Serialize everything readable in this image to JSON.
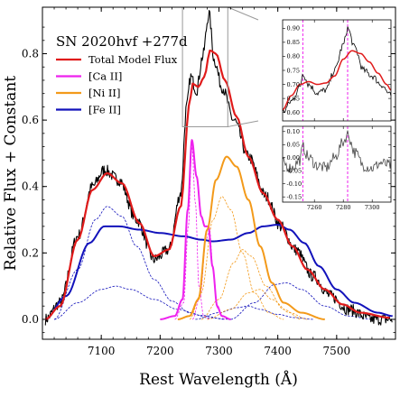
{
  "chart_data": {
    "type": "line",
    "title": "SN 2020hvf +277d",
    "xlabel": "Rest Wavelength (Å)",
    "ylabel": "Relative Flux + Constant",
    "xlim": [
      7000,
      7600
    ],
    "ylim": [
      -0.06,
      0.94
    ],
    "x_ticks": [
      "7100",
      "7200",
      "7300",
      "7400",
      "7500"
    ],
    "y_ticks": [
      "0.0",
      "0.2",
      "0.4",
      "0.6",
      "0.8"
    ],
    "legend_position": "upper-left",
    "legend": [
      {
        "label": "Total Model Flux",
        "color": "#e01b1b"
      },
      {
        "label": "[Ca II]",
        "color": "#ee22ee"
      },
      {
        "label": "[Ni II]",
        "color": "#f39a1a"
      },
      {
        "label": "[Fe II]",
        "color": "#1212bb"
      }
    ],
    "series": [
      {
        "name": "Total Model Flux",
        "color": "#e01b1b",
        "width": 2.2,
        "points": [
          [
            7005,
            0.0
          ],
          [
            7030,
            0.04
          ],
          [
            7060,
            0.24
          ],
          [
            7085,
            0.39
          ],
          [
            7110,
            0.44
          ],
          [
            7135,
            0.41
          ],
          [
            7165,
            0.29
          ],
          [
            7190,
            0.19
          ],
          [
            7215,
            0.21
          ],
          [
            7235,
            0.34
          ],
          [
            7250,
            0.65
          ],
          [
            7255,
            0.71
          ],
          [
            7265,
            0.7
          ],
          [
            7275,
            0.73
          ],
          [
            7285,
            0.81
          ],
          [
            7295,
            0.8
          ],
          [
            7310,
            0.72
          ],
          [
            7330,
            0.61
          ],
          [
            7350,
            0.49
          ],
          [
            7375,
            0.38
          ],
          [
            7400,
            0.3
          ],
          [
            7425,
            0.22
          ],
          [
            7450,
            0.15
          ],
          [
            7480,
            0.09
          ],
          [
            7510,
            0.045
          ],
          [
            7540,
            0.02
          ],
          [
            7590,
            0.005
          ]
        ]
      },
      {
        "name": "[Ca II]",
        "color": "#ee22ee",
        "width": 2.0,
        "points": [
          [
            7200,
            0.0
          ],
          [
            7225,
            0.01
          ],
          [
            7238,
            0.06
          ],
          [
            7247,
            0.33
          ],
          [
            7254,
            0.54
          ],
          [
            7262,
            0.43
          ],
          [
            7270,
            0.31
          ],
          [
            7276,
            0.28
          ],
          [
            7282,
            0.28
          ],
          [
            7289,
            0.16
          ],
          [
            7297,
            0.04
          ],
          [
            7305,
            0.01
          ],
          [
            7320,
            0.0
          ]
        ]
      },
      {
        "name": "[Ni II]",
        "color": "#f39a1a",
        "width": 2.0,
        "points": [
          [
            7230,
            0.0
          ],
          [
            7250,
            0.01
          ],
          [
            7265,
            0.06
          ],
          [
            7280,
            0.27
          ],
          [
            7295,
            0.42
          ],
          [
            7313,
            0.49
          ],
          [
            7330,
            0.46
          ],
          [
            7350,
            0.36
          ],
          [
            7370,
            0.22
          ],
          [
            7390,
            0.11
          ],
          [
            7410,
            0.05
          ],
          [
            7440,
            0.02
          ],
          [
            7480,
            0.0
          ]
        ]
      },
      {
        "name": "[Fe II]",
        "color": "#1212bb",
        "width": 2.0,
        "points": [
          [
            7005,
            0.0
          ],
          [
            7040,
            0.07
          ],
          [
            7080,
            0.23
          ],
          [
            7105,
            0.28
          ],
          [
            7130,
            0.28
          ],
          [
            7165,
            0.27
          ],
          [
            7200,
            0.26
          ],
          [
            7240,
            0.25
          ],
          [
            7270,
            0.24
          ],
          [
            7290,
            0.235
          ],
          [
            7320,
            0.24
          ],
          [
            7350,
            0.26
          ],
          [
            7375,
            0.28
          ],
          [
            7400,
            0.285
          ],
          [
            7420,
            0.27
          ],
          [
            7445,
            0.23
          ],
          [
            7470,
            0.16
          ],
          [
            7500,
            0.09
          ],
          [
            7530,
            0.05
          ],
          [
            7570,
            0.02
          ],
          [
            7595,
            0.01
          ]
        ]
      }
    ],
    "component_series": [
      {
        "color": "#1212bb",
        "points": [
          [
            7020,
            0.0
          ],
          [
            7060,
            0.15
          ],
          [
            7090,
            0.3
          ],
          [
            7110,
            0.34
          ],
          [
            7135,
            0.31
          ],
          [
            7160,
            0.22
          ],
          [
            7190,
            0.12
          ],
          [
            7220,
            0.055
          ],
          [
            7250,
            0.02
          ],
          [
            7280,
            0.005
          ],
          [
            7320,
            0.0
          ]
        ]
      },
      {
        "color": "#1212bb",
        "points": [
          [
            7020,
            0.0
          ],
          [
            7060,
            0.05
          ],
          [
            7100,
            0.09
          ],
          [
            7125,
            0.1
          ],
          [
            7150,
            0.09
          ],
          [
            7190,
            0.06
          ],
          [
            7230,
            0.03
          ],
          [
            7270,
            0.012
          ],
          [
            7310,
            0.0
          ]
        ]
      },
      {
        "color": "#1212bb",
        "points": [
          [
            7260,
            0.0
          ],
          [
            7300,
            0.02
          ],
          [
            7330,
            0.035
          ],
          [
            7350,
            0.04
          ],
          [
            7370,
            0.03
          ],
          [
            7400,
            0.015
          ],
          [
            7430,
            0.005
          ],
          [
            7460,
            0.0
          ]
        ]
      },
      {
        "color": "#1212bb",
        "points": [
          [
            7320,
            0.0
          ],
          [
            7360,
            0.05
          ],
          [
            7395,
            0.105
          ],
          [
            7415,
            0.11
          ],
          [
            7440,
            0.09
          ],
          [
            7480,
            0.04
          ],
          [
            7520,
            0.01
          ],
          [
            7560,
            0.0
          ]
        ]
      },
      {
        "color": "#ee22ee",
        "points": [
          [
            7225,
            0.0
          ],
          [
            7240,
            0.05
          ],
          [
            7248,
            0.28
          ],
          [
            7254,
            0.52
          ],
          [
            7260,
            0.35
          ],
          [
            7266,
            0.1
          ],
          [
            7274,
            0.01
          ],
          [
            7285,
            0.0
          ]
        ]
      },
      {
        "color": "#ee22ee",
        "points": [
          [
            7255,
            0.0
          ],
          [
            7268,
            0.07
          ],
          [
            7278,
            0.24
          ],
          [
            7284,
            0.27
          ],
          [
            7290,
            0.15
          ],
          [
            7298,
            0.03
          ],
          [
            7310,
            0.0
          ]
        ]
      },
      {
        "color": "#f39a1a",
        "points": [
          [
            7250,
            0.0
          ],
          [
            7270,
            0.08
          ],
          [
            7290,
            0.3
          ],
          [
            7305,
            0.37
          ],
          [
            7320,
            0.33
          ],
          [
            7340,
            0.2
          ],
          [
            7360,
            0.08
          ],
          [
            7385,
            0.02
          ],
          [
            7410,
            0.0
          ]
        ]
      },
      {
        "color": "#f39a1a",
        "points": [
          [
            7270,
            0.0
          ],
          [
            7300,
            0.06
          ],
          [
            7325,
            0.17
          ],
          [
            7340,
            0.21
          ],
          [
            7355,
            0.19
          ],
          [
            7380,
            0.1
          ],
          [
            7410,
            0.03
          ],
          [
            7440,
            0.0
          ]
        ]
      },
      {
        "color": "#f39a1a",
        "points": [
          [
            7280,
            0.0
          ],
          [
            7320,
            0.03
          ],
          [
            7350,
            0.08
          ],
          [
            7370,
            0.09
          ],
          [
            7390,
            0.06
          ],
          [
            7420,
            0.02
          ],
          [
            7450,
            0.0
          ]
        ]
      }
    ],
    "observed_spectrum": {
      "name": "Observed spectrum",
      "color": "#000000",
      "points": [
        [
          7005,
          0.0
        ],
        [
          7030,
          0.05
        ],
        [
          7060,
          0.25
        ],
        [
          7085,
          0.4
        ],
        [
          7105,
          0.45
        ],
        [
          7130,
          0.42
        ],
        [
          7160,
          0.3
        ],
        [
          7190,
          0.18
        ],
        [
          7215,
          0.21
        ],
        [
          7235,
          0.38
        ],
        [
          7245,
          0.64
        ],
        [
          7252,
          0.73
        ],
        [
          7262,
          0.69
        ],
        [
          7272,
          0.79
        ],
        [
          7283,
          0.92
        ],
        [
          7292,
          0.78
        ],
        [
          7305,
          0.7
        ],
        [
          7325,
          0.6
        ],
        [
          7350,
          0.49
        ],
        [
          7380,
          0.37
        ],
        [
          7405,
          0.28
        ],
        [
          7430,
          0.21
        ],
        [
          7460,
          0.13
        ],
        [
          7490,
          0.07
        ],
        [
          7520,
          0.03
        ],
        [
          7560,
          0.0
        ],
        [
          7595,
          0.0
        ]
      ],
      "noise_amplitude": 0.018
    },
    "zoom_box": {
      "x": [
        7238,
        7315
      ],
      "y": [
        0.58,
        0.94
      ]
    },
    "insets": [
      {
        "name": "inset-top",
        "xlim": [
          7238,
          7313
        ],
        "ylim": [
          0.57,
          0.93
        ],
        "y_ticks": [
          "0.90",
          "0.85",
          "0.80",
          "0.75",
          "0.70",
          "0.65",
          "0.60"
        ],
        "y_tick_values": [
          0.9,
          0.85,
          0.8,
          0.75,
          0.7,
          0.65,
          0.6
        ],
        "x_tick_values": [
          7260,
          7280,
          7300
        ],
        "vlines": [
          7252,
          7283
        ],
        "model_points": [
          [
            7238,
            0.61
          ],
          [
            7244,
            0.66
          ],
          [
            7250,
            0.7
          ],
          [
            7256,
            0.71
          ],
          [
            7262,
            0.7
          ],
          [
            7268,
            0.705
          ],
          [
            7274,
            0.73
          ],
          [
            7280,
            0.79
          ],
          [
            7286,
            0.82
          ],
          [
            7292,
            0.81
          ],
          [
            7298,
            0.78
          ],
          [
            7304,
            0.74
          ],
          [
            7310,
            0.7
          ],
          [
            7313,
            0.68
          ]
        ],
        "data_points": [
          [
            7238,
            0.6
          ],
          [
            7244,
            0.64
          ],
          [
            7250,
            0.69
          ],
          [
            7252,
            0.74
          ],
          [
            7256,
            0.7
          ],
          [
            7262,
            0.67
          ],
          [
            7268,
            0.68
          ],
          [
            7274,
            0.75
          ],
          [
            7280,
            0.84
          ],
          [
            7283,
            0.9
          ],
          [
            7288,
            0.83
          ],
          [
            7294,
            0.75
          ],
          [
            7300,
            0.73
          ],
          [
            7306,
            0.7
          ],
          [
            7313,
            0.66
          ]
        ],
        "noise_amplitude": 0.012
      },
      {
        "name": "inset-bottom",
        "xlim": [
          7238,
          7313
        ],
        "ylim": [
          -0.17,
          0.12
        ],
        "y_ticks": [
          "0.10",
          "0.05",
          "0.00",
          "-0.05",
          "-0.10",
          "-0.15"
        ],
        "y_tick_values": [
          0.1,
          0.05,
          0.0,
          -0.05,
          -0.1,
          -0.15
        ],
        "x_ticks": [
          "7260",
          "7280",
          "7300"
        ],
        "x_tick_values": [
          7260,
          7280,
          7300
        ],
        "vlines": [
          7252,
          7283
        ],
        "data_points": [
          [
            7238,
            -0.02
          ],
          [
            7244,
            -0.04
          ],
          [
            7250,
            -0.01
          ],
          [
            7252,
            0.04
          ],
          [
            7256,
            0.0
          ],
          [
            7262,
            -0.03
          ],
          [
            7268,
            -0.04
          ],
          [
            7274,
            0.0
          ],
          [
            7280,
            0.06
          ],
          [
            7283,
            0.09
          ],
          [
            7288,
            0.02
          ],
          [
            7294,
            -0.03
          ],
          [
            7300,
            -0.04
          ],
          [
            7306,
            -0.02
          ],
          [
            7313,
            -0.03
          ]
        ],
        "noise_amplitude": 0.022
      }
    ]
  }
}
